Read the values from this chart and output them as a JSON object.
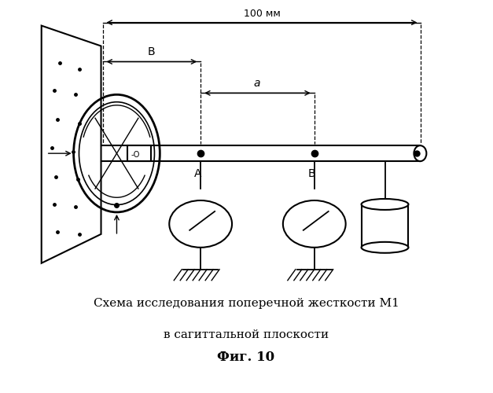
{
  "title_line1": "Схема исследования поперечной жесткости М1",
  "title_line2": "в сагиттальной плоскости",
  "title_line3": "Фиг. 10",
  "bg_color": "#ffffff",
  "line_color": "#000000",
  "fig_width": 6.27,
  "fig_height": 5.0,
  "dpi": 100
}
